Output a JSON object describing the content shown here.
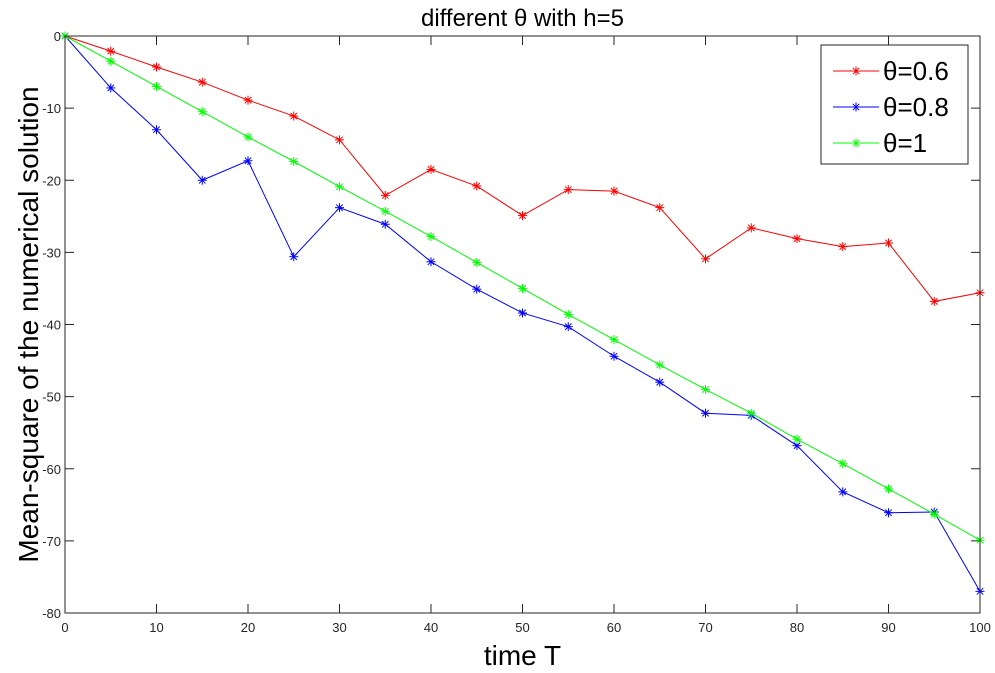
{
  "chart_data": {
    "type": "line",
    "title": "different θ with h=5",
    "xlabel": "time T",
    "ylabel": "Mean-square of the numerical solution",
    "xlim": [
      0,
      100
    ],
    "ylim": [
      -80,
      0
    ],
    "xticks": [
      0,
      10,
      20,
      30,
      40,
      50,
      60,
      70,
      80,
      90,
      100
    ],
    "yticks": [
      0,
      -10,
      -20,
      -30,
      -40,
      -50,
      -60,
      -70,
      -80
    ],
    "grid": false,
    "legend_position": "top-right",
    "x": [
      0,
      5,
      10,
      15,
      20,
      25,
      30,
      35,
      40,
      45,
      50,
      55,
      60,
      65,
      70,
      75,
      80,
      85,
      90,
      95,
      100
    ],
    "series": [
      {
        "name": "θ=0.6",
        "color": "#ff0000",
        "marker": "asterisk",
        "values": [
          0,
          -2.1,
          -4.3,
          -6.4,
          -8.9,
          -11.1,
          -14.4,
          -22.1,
          -18.5,
          -20.8,
          -24.9,
          -21.3,
          -21.5,
          -23.8,
          -30.9,
          -26.6,
          -28.1,
          -29.2,
          -28.7,
          -36.8,
          -35.6
        ]
      },
      {
        "name": "θ=0.8",
        "color": "#0000ff",
        "marker": "asterisk",
        "values": [
          0,
          -7.2,
          -13.0,
          -20.0,
          -17.3,
          -30.6,
          -23.8,
          -26.1,
          -31.3,
          -35.1,
          -38.4,
          -40.3,
          -44.4,
          -48.0,
          -52.3,
          -52.6,
          -56.8,
          -63.2,
          -66.1,
          -66.0,
          -77.0
        ]
      },
      {
        "name": "θ=1",
        "color": "#00ff00",
        "marker": "asterisk",
        "values": [
          0,
          -3.5,
          -7.0,
          -10.5,
          -14.0,
          -17.4,
          -20.9,
          -24.3,
          -27.8,
          -31.4,
          -35.0,
          -38.6,
          -42.1,
          -45.6,
          -49.0,
          -52.3,
          -55.9,
          -59.3,
          -62.8,
          -66.3,
          -69.9
        ]
      }
    ]
  }
}
